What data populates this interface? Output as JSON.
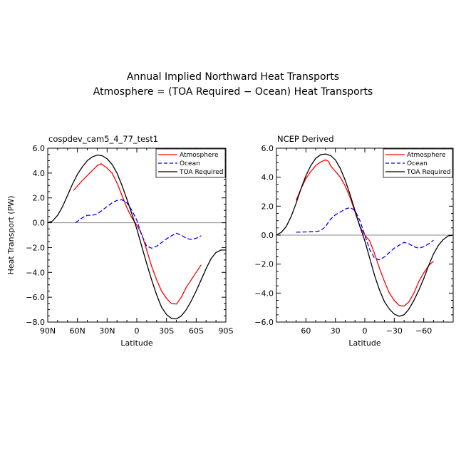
{
  "figure": {
    "title_line1": "Annual Implied Northward Heat Transports",
    "title_line2": "Atmosphere = (TOA Required − Ocean) Heat Transports"
  },
  "colors": {
    "atmosphere": "#ff0000",
    "ocean": "#0000ff",
    "toa": "#000000"
  },
  "chart_data": [
    {
      "type": "line",
      "panel_title": "cospdev_cam5_4_77_test1",
      "xlabel": "Latitude",
      "ylabel": "Heat Transport (PW)",
      "xlim": [
        90,
        -90
      ],
      "ylim": [
        -8,
        6
      ],
      "xticks": [
        90,
        60,
        30,
        0,
        -30,
        -60,
        -90
      ],
      "xtick_labels": [
        "90N",
        "60N",
        "30N",
        "0",
        "30S",
        "60S",
        "90S"
      ],
      "yticks": [
        6,
        4,
        2,
        0,
        -2,
        -4,
        -6,
        -8
      ],
      "ytick_labels": [
        "6.0",
        "4.0",
        "2.0",
        "0.0",
        "−2.0",
        "−4.0",
        "−6.0",
        "−8.0"
      ],
      "legend": {
        "position": "top-right",
        "entries": [
          "Atmosphere",
          "Ocean",
          "TOA Required"
        ]
      },
      "series": [
        {
          "name": "Atmosphere",
          "style": "solid",
          "color": "#ff0000",
          "x": [
            64,
            55,
            45,
            40,
            36,
            30,
            25,
            20,
            15,
            10,
            5,
            0,
            -5,
            -10,
            -15,
            -20,
            -25,
            -30,
            -35,
            -40,
            -45,
            -50,
            -55,
            -60,
            -65
          ],
          "y": [
            2.6,
            3.4,
            4.2,
            4.6,
            4.75,
            4.4,
            4.0,
            3.2,
            2.2,
            1.2,
            0.4,
            -0.2,
            -0.9,
            -2.2,
            -3.5,
            -4.6,
            -5.5,
            -6.1,
            -6.5,
            -6.55,
            -6.0,
            -5.2,
            -4.6,
            -4.0,
            -3.4
          ]
        },
        {
          "name": "Ocean",
          "style": "dashed",
          "color": "#0000ff",
          "x": [
            62,
            55,
            50,
            45,
            40,
            35,
            30,
            25,
            20,
            15,
            10,
            5,
            0,
            -5,
            -10,
            -15,
            -20,
            -25,
            -30,
            -35,
            -40,
            -45,
            -50,
            -55,
            -60,
            -65
          ],
          "y": [
            0.0,
            0.4,
            0.6,
            0.6,
            0.7,
            1.0,
            1.3,
            1.6,
            1.8,
            1.85,
            1.6,
            1.0,
            0.2,
            -1.0,
            -1.9,
            -2.05,
            -1.9,
            -1.6,
            -1.3,
            -1.05,
            -0.85,
            -1.0,
            -1.25,
            -1.35,
            -1.25,
            -1.05
          ]
        },
        {
          "name": "TOA Required",
          "style": "solid",
          "color": "#000000",
          "x": [
            90,
            85,
            80,
            75,
            70,
            65,
            60,
            55,
            50,
            45,
            40,
            35,
            30,
            25,
            20,
            15,
            10,
            5,
            0,
            -5,
            -10,
            -15,
            -20,
            -25,
            -30,
            -35,
            -40,
            -45,
            -50,
            -55,
            -60,
            -65,
            -70,
            -75,
            -80,
            -85,
            -90
          ],
          "y": [
            0.0,
            0.15,
            0.6,
            1.3,
            2.2,
            3.1,
            3.9,
            4.5,
            5.0,
            5.3,
            5.45,
            5.4,
            5.15,
            4.7,
            4.0,
            3.0,
            1.9,
            0.7,
            -0.5,
            -1.9,
            -3.3,
            -4.6,
            -5.8,
            -6.8,
            -7.4,
            -7.7,
            -7.75,
            -7.5,
            -7.0,
            -6.3,
            -5.5,
            -4.6,
            -3.7,
            -2.9,
            -2.4,
            -2.2,
            -2.2
          ]
        }
      ]
    },
    {
      "type": "line",
      "panel_title": "NCEP Derived",
      "xlabel": "Latitude",
      "ylabel": "",
      "xlim": [
        90,
        -90
      ],
      "ylim": [
        -6,
        6
      ],
      "xticks": [
        60,
        30,
        0,
        -30,
        -60
      ],
      "xtick_labels": [
        "60",
        "30",
        "0",
        "−30",
        "−60"
      ],
      "yticks": [
        6,
        4,
        2,
        0,
        -2,
        -4,
        -6
      ],
      "ytick_labels": [
        "6.0",
        "4.0",
        "2.0",
        "0.0",
        "−2.0",
        "−4.0",
        "−6.0"
      ],
      "legend": {
        "position": "top-right",
        "entries": [
          "Atmosphere",
          "Ocean",
          "TOA Required"
        ]
      },
      "series": [
        {
          "name": "Atmosphere",
          "style": "solid",
          "color": "#ff0000",
          "x": [
            70,
            65,
            60,
            55,
            50,
            45,
            40,
            37,
            35,
            30,
            25,
            20,
            15,
            10,
            5,
            0,
            -5,
            -10,
            -15,
            -20,
            -25,
            -30,
            -35,
            -40,
            -45,
            -50,
            -55,
            -60,
            -65,
            -70
          ],
          "y": [
            2.4,
            3.2,
            3.9,
            4.4,
            4.8,
            5.05,
            5.2,
            5.1,
            4.8,
            4.4,
            4.0,
            3.4,
            2.6,
            1.6,
            0.6,
            0.0,
            -0.4,
            -1.3,
            -2.3,
            -3.2,
            -4.0,
            -4.5,
            -4.85,
            -4.9,
            -4.6,
            -4.0,
            -3.2,
            -2.6,
            -2.1,
            -1.8
          ]
        },
        {
          "name": "Ocean",
          "style": "dashed",
          "color": "#0000ff",
          "x": [
            70,
            60,
            50,
            45,
            40,
            35,
            30,
            25,
            20,
            15,
            10,
            5,
            0,
            -5,
            -10,
            -15,
            -20,
            -25,
            -30,
            -35,
            -40,
            -45,
            -50,
            -55,
            -60,
            -65,
            -70
          ],
          "y": [
            0.2,
            0.22,
            0.25,
            0.3,
            0.6,
            1.1,
            1.4,
            1.6,
            1.8,
            1.9,
            1.7,
            1.0,
            0.0,
            -1.0,
            -1.6,
            -1.7,
            -1.5,
            -1.2,
            -0.9,
            -0.7,
            -0.5,
            -0.6,
            -0.8,
            -0.9,
            -0.8,
            -0.6,
            -0.35
          ]
        },
        {
          "name": "TOA Required",
          "style": "solid",
          "color": "#000000",
          "x": [
            90,
            85,
            80,
            75,
            70,
            65,
            60,
            55,
            50,
            45,
            40,
            35,
            30,
            25,
            20,
            15,
            10,
            5,
            0,
            -5,
            -10,
            -15,
            -20,
            -25,
            -30,
            -35,
            -40,
            -45,
            -50,
            -55,
            -60,
            -65,
            -70,
            -75,
            -80,
            -85,
            -90
          ],
          "y": [
            0.0,
            0.2,
            0.6,
            1.3,
            2.2,
            3.2,
            4.1,
            4.8,
            5.3,
            5.55,
            5.6,
            5.5,
            5.2,
            4.6,
            3.8,
            2.8,
            1.7,
            0.6,
            -0.4,
            -1.6,
            -2.8,
            -3.8,
            -4.6,
            -5.1,
            -5.45,
            -5.6,
            -5.5,
            -5.1,
            -4.5,
            -3.8,
            -3.0,
            -2.1,
            -1.3,
            -0.7,
            -0.3,
            -0.05,
            0.0
          ]
        }
      ]
    }
  ]
}
